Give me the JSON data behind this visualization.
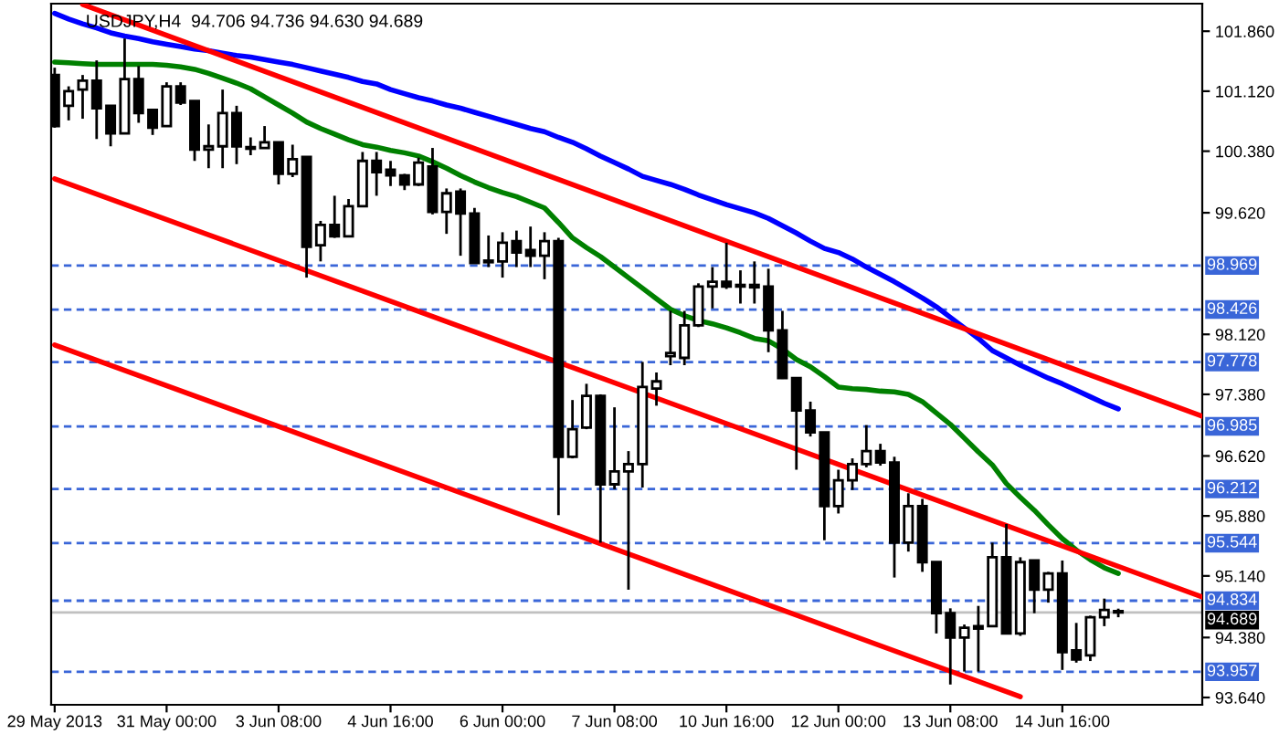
{
  "chart_data": {
    "type": "candlestick",
    "title": "USDJPY,H4  94.706 94.736 94.630 94.689",
    "categories": [
      "29 May 2013",
      null,
      null,
      null,
      null,
      null,
      null,
      null,
      "31 May 00:00",
      null,
      null,
      null,
      null,
      null,
      null,
      null,
      "3 Jun 08:00",
      null,
      null,
      null,
      null,
      null,
      null,
      null,
      "4 Jun 16:00",
      null,
      null,
      null,
      null,
      null,
      null,
      null,
      "6 Jun 00:00",
      null,
      null,
      null,
      null,
      null,
      null,
      null,
      "7 Jun 08:00",
      null,
      null,
      null,
      null,
      null,
      null,
      null,
      "10 Jun 16:00",
      null,
      null,
      null,
      null,
      null,
      null,
      null,
      "12 Jun 00:00",
      null,
      null,
      null,
      null,
      null,
      null,
      null,
      "13 Jun 08:00",
      null,
      null,
      null,
      null,
      null,
      null,
      null,
      "14 Jun 16:00",
      null,
      null,
      null,
      null,
      null,
      null,
      null,
      null,
      null,
      null
    ],
    "ohlc": [
      [
        101.32,
        101.41,
        100.67,
        100.69
      ],
      [
        100.94,
        101.18,
        100.76,
        101.12
      ],
      [
        101.14,
        101.32,
        100.78,
        101.25
      ],
      [
        101.25,
        101.5,
        100.53,
        100.91
      ],
      [
        100.94,
        100.94,
        100.44,
        100.6
      ],
      [
        100.6,
        101.77,
        100.6,
        101.27
      ],
      [
        101.27,
        101.43,
        100.73,
        100.85
      ],
      [
        100.89,
        100.89,
        100.58,
        100.67
      ],
      [
        100.69,
        101.23,
        100.69,
        101.18
      ],
      [
        101.18,
        101.23,
        100.95,
        100.98
      ],
      [
        101.0,
        101.0,
        100.26,
        100.4
      ],
      [
        100.4,
        100.71,
        100.17,
        100.44
      ],
      [
        100.44,
        101.14,
        100.17,
        100.85
      ],
      [
        100.85,
        100.94,
        100.22,
        100.44
      ],
      [
        100.43,
        100.55,
        100.33,
        100.41
      ],
      [
        100.42,
        100.69,
        100.42,
        100.49
      ],
      [
        100.49,
        100.49,
        99.97,
        100.1
      ],
      [
        100.1,
        100.46,
        100.06,
        100.28
      ],
      [
        100.31,
        100.31,
        98.82,
        99.2
      ],
      [
        99.22,
        99.52,
        99.02,
        99.47
      ],
      [
        99.47,
        99.83,
        99.31,
        99.33
      ],
      [
        99.33,
        99.79,
        99.33,
        99.7
      ],
      [
        99.7,
        100.37,
        99.7,
        100.26
      ],
      [
        100.26,
        100.37,
        99.83,
        100.12
      ],
      [
        100.15,
        100.26,
        99.95,
        100.08
      ],
      [
        100.08,
        100.1,
        99.9,
        99.97
      ],
      [
        99.97,
        100.3,
        99.95,
        100.24
      ],
      [
        100.19,
        100.42,
        99.6,
        99.63
      ],
      [
        99.63,
        99.92,
        99.36,
        99.86
      ],
      [
        99.88,
        99.92,
        99.09,
        99.61
      ],
      [
        99.61,
        99.68,
        99.0,
        99.0
      ],
      [
        99.03,
        99.34,
        98.95,
        99.01
      ],
      [
        99.02,
        99.38,
        98.82,
        99.25
      ],
      [
        99.27,
        99.4,
        98.95,
        99.13
      ],
      [
        99.16,
        99.45,
        98.95,
        99.09
      ],
      [
        99.09,
        99.38,
        98.8,
        99.27
      ],
      [
        99.27,
        99.31,
        95.89,
        96.61
      ],
      [
        96.61,
        97.31,
        96.59,
        96.95
      ],
      [
        96.97,
        97.51,
        96.95,
        97.36
      ],
      [
        97.36,
        97.38,
        95.55,
        96.27
      ],
      [
        96.27,
        97.22,
        96.21,
        96.43
      ],
      [
        96.43,
        96.68,
        94.97,
        96.52
      ],
      [
        96.52,
        97.78,
        96.23,
        97.47
      ],
      [
        97.45,
        97.65,
        97.24,
        97.54
      ],
      [
        97.85,
        98.41,
        97.74,
        97.89
      ],
      [
        97.83,
        98.41,
        97.74,
        98.23
      ],
      [
        98.23,
        98.75,
        98.21,
        98.71
      ],
      [
        98.71,
        98.95,
        98.44,
        98.77
      ],
      [
        98.77,
        99.25,
        98.68,
        98.71
      ],
      [
        98.73,
        98.91,
        98.5,
        98.71
      ],
      [
        98.73,
        99.02,
        98.5,
        98.7
      ],
      [
        98.71,
        98.93,
        97.9,
        98.17
      ],
      [
        98.17,
        98.41,
        97.57,
        97.58
      ],
      [
        97.58,
        97.58,
        96.45,
        97.18
      ],
      [
        97.18,
        97.29,
        96.86,
        96.91
      ],
      [
        96.91,
        96.91,
        95.58,
        96.0
      ],
      [
        96.0,
        96.45,
        95.91,
        96.32
      ],
      [
        96.32,
        96.59,
        96.2,
        96.52
      ],
      [
        96.52,
        97.0,
        96.48,
        96.68
      ],
      [
        96.68,
        96.77,
        96.5,
        96.54
      ],
      [
        96.54,
        96.61,
        95.12,
        95.55
      ],
      [
        95.55,
        96.16,
        95.44,
        96.0
      ],
      [
        96.0,
        96.09,
        95.19,
        95.31
      ],
      [
        95.31,
        95.31,
        94.43,
        94.68
      ],
      [
        94.68,
        94.74,
        93.8,
        94.38
      ],
      [
        94.38,
        94.54,
        93.96,
        94.5
      ],
      [
        94.49,
        94.77,
        93.96,
        94.52
      ],
      [
        94.52,
        95.55,
        94.52,
        95.37
      ],
      [
        95.37,
        95.78,
        94.43,
        94.43
      ],
      [
        94.43,
        95.37,
        94.4,
        95.31
      ],
      [
        95.33,
        95.33,
        94.68,
        94.97
      ],
      [
        94.97,
        95.19,
        94.81,
        95.17
      ],
      [
        95.17,
        95.33,
        93.98,
        94.2
      ],
      [
        94.22,
        94.56,
        94.07,
        94.11
      ],
      [
        94.16,
        94.65,
        94.09,
        94.63
      ],
      [
        94.63,
        94.86,
        94.52,
        94.72
      ],
      [
        94.706,
        94.736,
        94.63,
        94.689
      ],
      null,
      null,
      null,
      null,
      null,
      null
    ],
    "series": [
      {
        "type": "line",
        "color": "#008000",
        "values": [
          101.48,
          101.47,
          101.46,
          101.45,
          101.45,
          101.45,
          101.45,
          101.45,
          101.44,
          101.42,
          101.39,
          101.34,
          101.28,
          101.22,
          101.15,
          101.05,
          100.95,
          100.85,
          100.74,
          100.66,
          100.59,
          100.52,
          100.46,
          100.43,
          100.39,
          100.36,
          100.32,
          100.25,
          100.17,
          100.08,
          100.0,
          99.93,
          99.87,
          99.82,
          99.75,
          99.68,
          99.5,
          99.31,
          99.19,
          99.08,
          98.95,
          98.82,
          98.69,
          98.56,
          98.43,
          98.35,
          98.29,
          98.25,
          98.2,
          98.14,
          98.07,
          98.04,
          97.94,
          97.81,
          97.72,
          97.6,
          97.47,
          97.45,
          97.44,
          97.42,
          97.41,
          97.38,
          97.29,
          97.15,
          97.01,
          96.84,
          96.67,
          96.51,
          96.28,
          96.11,
          95.95,
          95.77,
          95.6,
          95.46,
          95.34,
          95.24,
          95.17,
          null,
          null,
          null,
          null,
          null,
          null
        ]
      },
      {
        "type": "line",
        "color": "#0000ff",
        "values": [
          102.08,
          102.01,
          101.95,
          101.9,
          101.84,
          101.8,
          101.77,
          101.73,
          101.7,
          101.67,
          101.64,
          101.62,
          101.59,
          101.56,
          101.54,
          101.51,
          101.48,
          101.45,
          101.41,
          101.37,
          101.33,
          101.29,
          101.24,
          101.21,
          101.14,
          101.09,
          101.04,
          101.0,
          100.95,
          100.91,
          100.86,
          100.81,
          100.76,
          100.71,
          100.66,
          100.62,
          100.55,
          100.49,
          100.41,
          100.32,
          100.24,
          100.16,
          100.07,
          100.02,
          99.97,
          99.91,
          99.84,
          99.78,
          99.72,
          99.67,
          99.62,
          99.55,
          99.46,
          99.37,
          99.27,
          99.18,
          99.13,
          99.05,
          98.95,
          98.86,
          98.77,
          98.67,
          98.57,
          98.46,
          98.33,
          98.2,
          98.07,
          97.92,
          97.83,
          97.74,
          97.66,
          97.58,
          97.51,
          97.43,
          97.35,
          97.27,
          97.2,
          null,
          null,
          null,
          null,
          null,
          null
        ]
      },
      {
        "type": "line",
        "color": "#ff0000",
        "values": [
          null,
          null,
          102.19,
          null,
          null,
          null,
          null,
          null,
          null,
          null,
          null,
          null,
          null,
          null,
          null,
          null,
          null,
          null,
          null,
          null,
          null,
          null,
          null,
          null,
          null,
          null,
          null,
          null,
          null,
          null,
          null,
          null,
          null,
          null,
          null,
          null,
          null,
          null,
          null,
          null,
          null,
          null,
          null,
          null,
          null,
          null,
          null,
          null,
          null,
          null,
          null,
          null,
          null,
          null,
          null,
          null,
          null,
          null,
          null,
          null,
          null,
          null,
          null,
          null,
          null,
          null,
          null,
          null,
          null,
          null,
          null,
          null,
          null,
          null,
          null,
          null,
          null,
          null,
          null,
          null,
          null,
          null,
          97.11
        ]
      },
      {
        "type": "line",
        "color": "#ff0000",
        "values": [
          100.04,
          null,
          null,
          null,
          null,
          null,
          null,
          null,
          null,
          null,
          null,
          null,
          null,
          null,
          null,
          null,
          null,
          null,
          null,
          null,
          null,
          null,
          null,
          null,
          null,
          null,
          null,
          null,
          null,
          null,
          null,
          null,
          null,
          null,
          null,
          null,
          null,
          null,
          null,
          null,
          null,
          null,
          null,
          null,
          null,
          null,
          null,
          null,
          null,
          null,
          null,
          null,
          null,
          null,
          null,
          null,
          null,
          null,
          null,
          null,
          null,
          null,
          null,
          null,
          null,
          null,
          null,
          null,
          null,
          null,
          null,
          null,
          null,
          null,
          null,
          null,
          null,
          null,
          null,
          null,
          null,
          null,
          94.88
        ]
      },
      {
        "type": "line",
        "color": "#ff0000",
        "values": [
          97.99,
          null,
          null,
          null,
          null,
          null,
          null,
          null,
          null,
          null,
          null,
          null,
          null,
          null,
          null,
          null,
          null,
          null,
          null,
          null,
          null,
          null,
          null,
          null,
          null,
          null,
          null,
          null,
          null,
          null,
          null,
          null,
          null,
          null,
          null,
          null,
          null,
          null,
          null,
          null,
          null,
          null,
          null,
          null,
          null,
          null,
          null,
          null,
          null,
          null,
          null,
          null,
          null,
          null,
          null,
          null,
          null,
          null,
          null,
          null,
          null,
          null,
          null,
          null,
          null,
          null,
          null,
          null,
          null,
          93.65,
          null,
          null,
          null,
          null,
          null,
          null,
          null,
          null,
          null,
          null,
          null,
          null,
          null
        ]
      }
    ],
    "ylim": [
      93.55,
      102.2
    ],
    "yticks": [
      {
        "value": 101.86,
        "label": "101.860"
      },
      {
        "value": 101.12,
        "label": "101.120"
      },
      {
        "value": 100.38,
        "label": "100.380"
      },
      {
        "value": 99.62,
        "label": "99.620"
      },
      {
        "value": 98.12,
        "label": "98.120"
      },
      {
        "value": 97.38,
        "label": "97.380"
      },
      {
        "value": 96.62,
        "label": "96.620"
      },
      {
        "value": 95.88,
        "label": "95.880"
      },
      {
        "value": 95.14,
        "label": "95.140"
      },
      {
        "value": 94.38,
        "label": "94.380"
      },
      {
        "value": 93.64,
        "label": "93.640"
      }
    ],
    "ref_lines": [
      {
        "axis": "y",
        "value": 98.969,
        "label": "98.969",
        "color": "#3a66d8",
        "line_style": "dashed"
      },
      {
        "axis": "y",
        "value": 98.426,
        "label": "98.426",
        "color": "#3a66d8",
        "line_style": "dashed"
      },
      {
        "axis": "y",
        "value": 97.778,
        "label": "97.778",
        "color": "#3a66d8",
        "line_style": "dashed"
      },
      {
        "axis": "y",
        "value": 96.985,
        "label": "96.985",
        "color": "#3a66d8",
        "line_style": "dashed"
      },
      {
        "axis": "y",
        "value": 96.212,
        "label": "96.212",
        "color": "#3a66d8",
        "line_style": "dashed"
      },
      {
        "axis": "y",
        "value": 95.544,
        "label": "95.544",
        "color": "#3a66d8",
        "line_style": "dashed"
      },
      {
        "axis": "y",
        "value": 94.834,
        "label": "94.834",
        "color": "#3a66d8",
        "line_style": "dashed"
      },
      {
        "axis": "y",
        "value": 93.957,
        "label": "93.957",
        "color": "#3a66d8",
        "line_style": "dashed"
      },
      {
        "axis": "y",
        "value": 94.689,
        "label": "94.689",
        "color": "#c0c0c0",
        "line_style": "solid"
      }
    ],
    "grid": false,
    "legend": false
  }
}
